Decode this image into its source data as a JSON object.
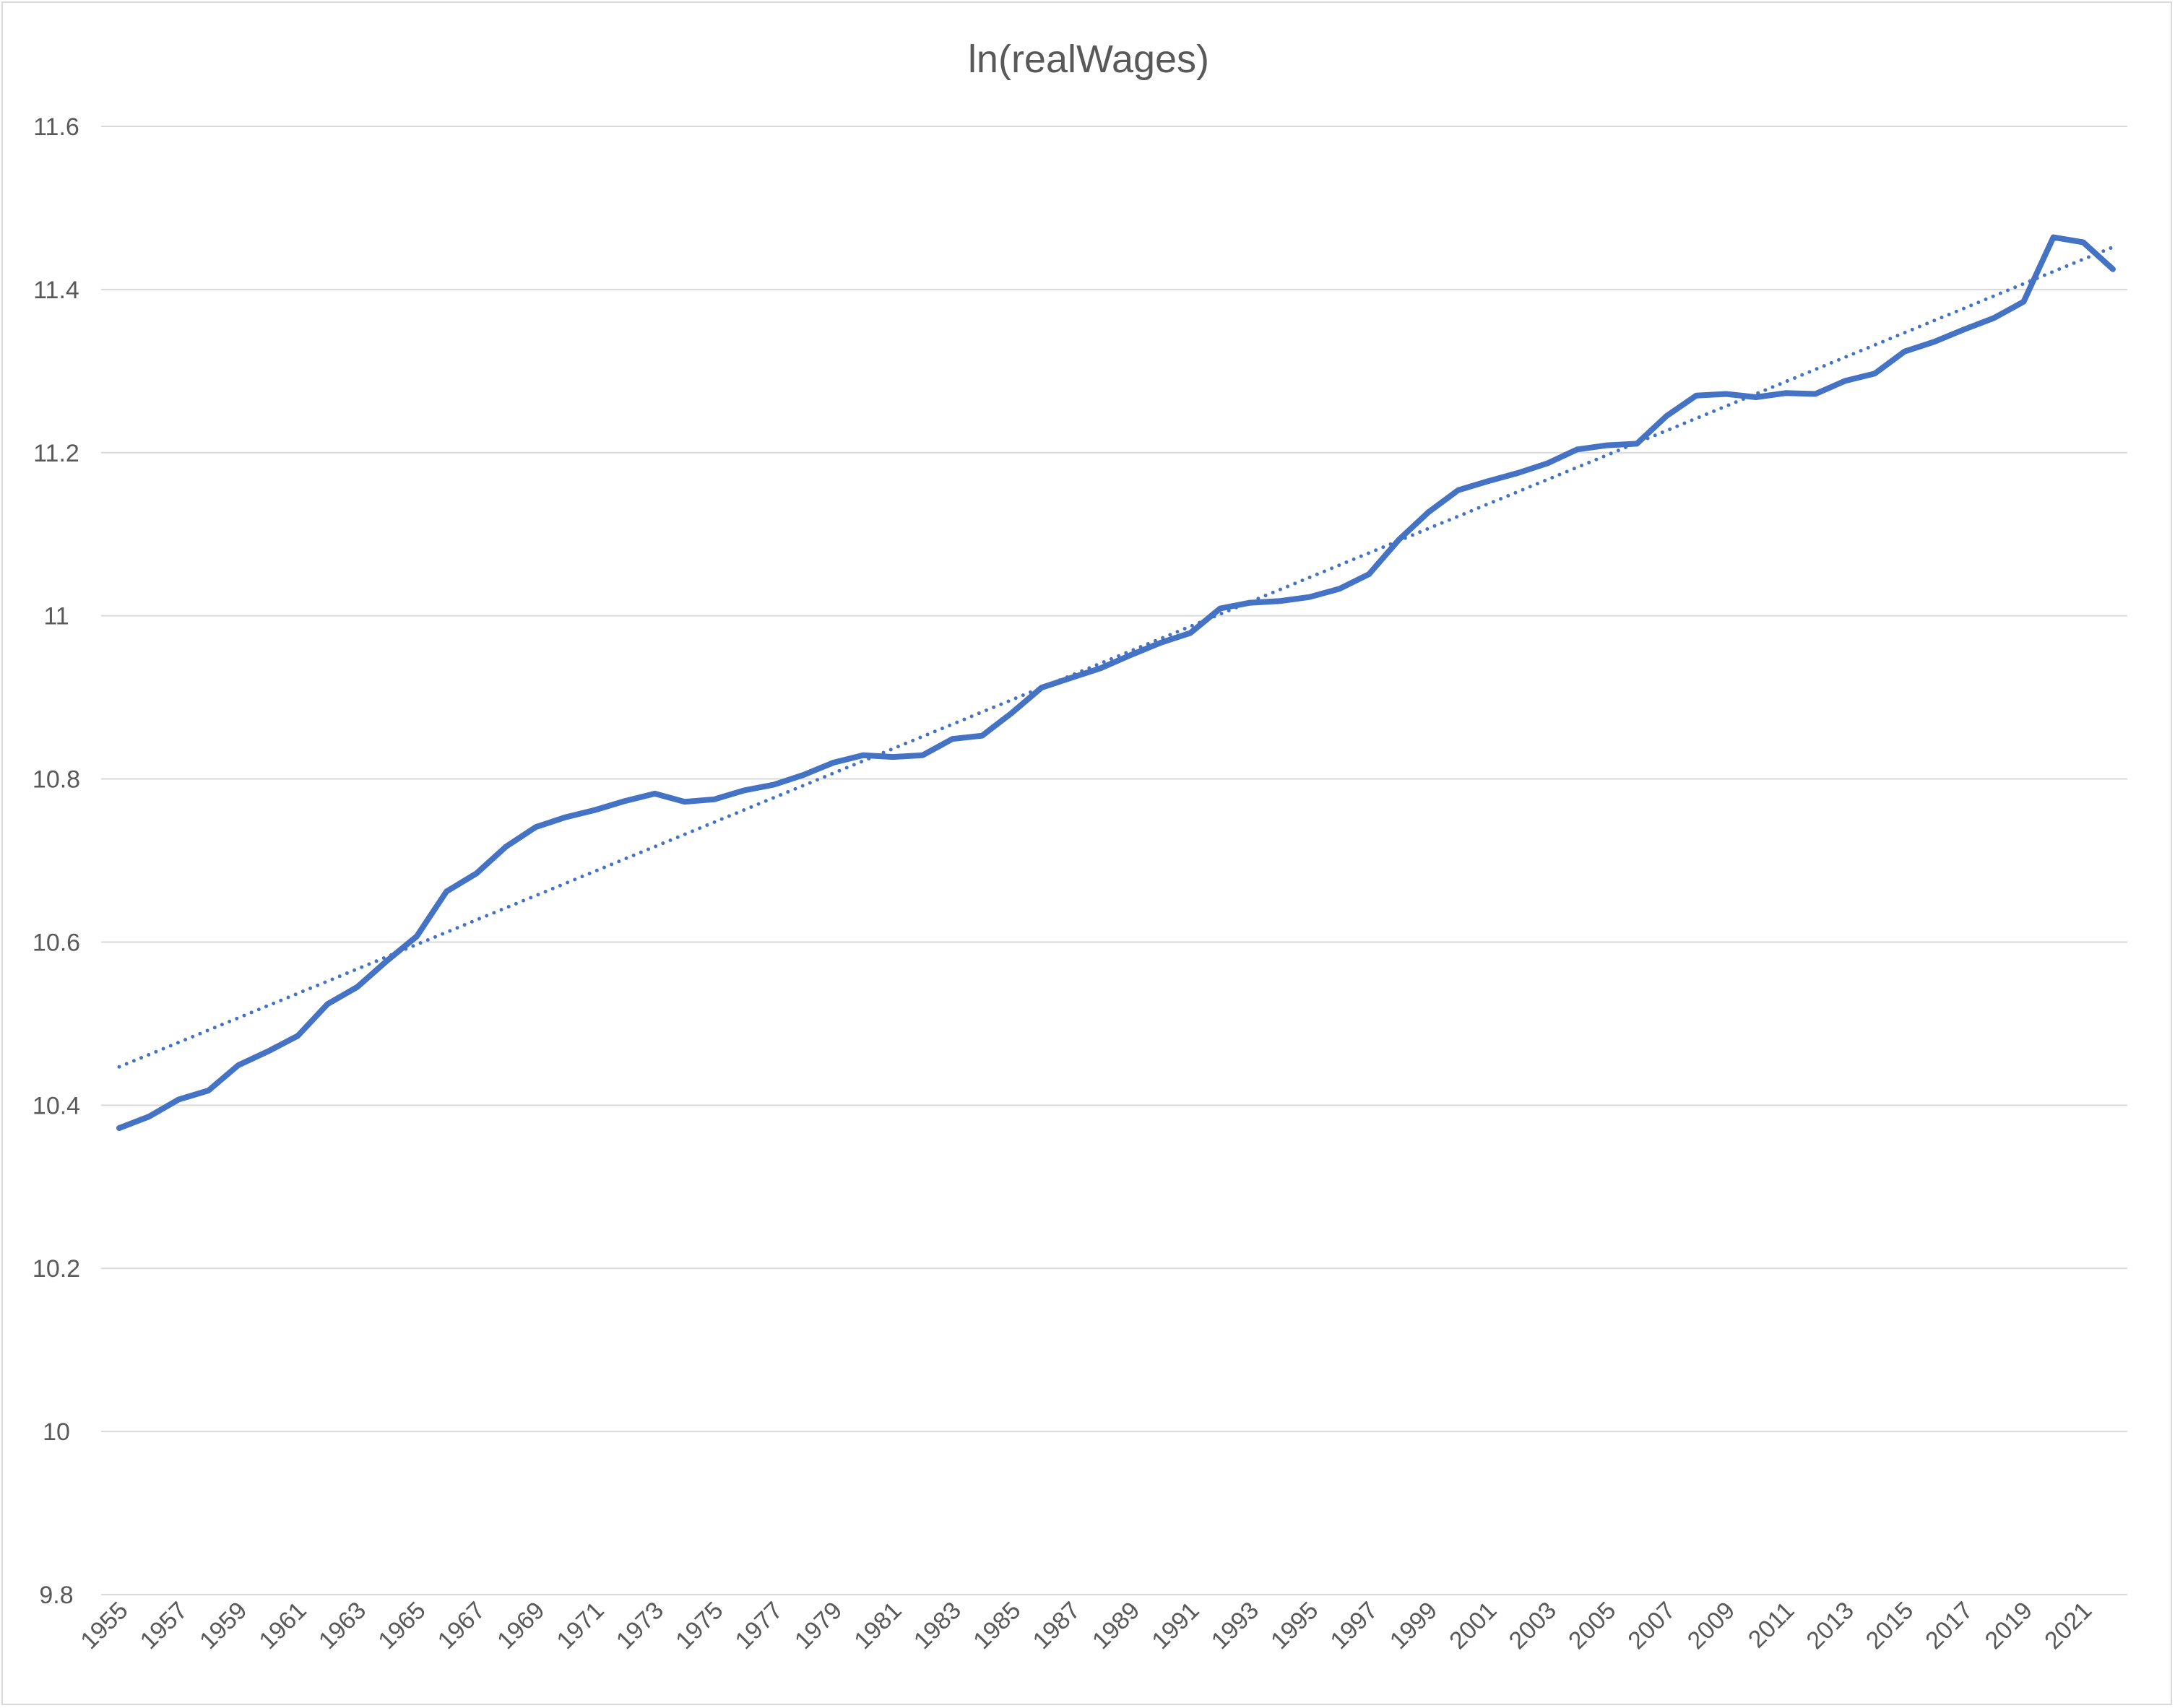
{
  "chart_data": {
    "type": "line",
    "title": "ln(realWages)",
    "xlabel": "",
    "ylabel": "",
    "x": [
      1955,
      1956,
      1957,
      1958,
      1959,
      1960,
      1961,
      1962,
      1963,
      1964,
      1965,
      1966,
      1967,
      1968,
      1969,
      1970,
      1971,
      1972,
      1973,
      1974,
      1975,
      1976,
      1977,
      1978,
      1979,
      1980,
      1981,
      1982,
      1983,
      1984,
      1985,
      1986,
      1987,
      1988,
      1989,
      1990,
      1991,
      1992,
      1993,
      1994,
      1995,
      1996,
      1997,
      1998,
      1999,
      2000,
      2001,
      2002,
      2003,
      2004,
      2005,
      2006,
      2007,
      2008,
      2009,
      2010,
      2011,
      2012,
      2013,
      2014,
      2015,
      2016,
      2017,
      2018,
      2019,
      2020,
      2021,
      2022
    ],
    "x_tick_labels": [
      "1955",
      "1957",
      "1959",
      "1961",
      "1963",
      "1965",
      "1967",
      "1969",
      "1971",
      "1973",
      "1975",
      "1977",
      "1979",
      "1981",
      "1983",
      "1985",
      "1987",
      "1989",
      "1991",
      "1993",
      "1995",
      "1997",
      "1999",
      "2001",
      "2003",
      "2005",
      "2007",
      "2009",
      "2011",
      "2013",
      "2015",
      "2017",
      "2019",
      "2021"
    ],
    "y_tick_labels": [
      "9.8",
      "10",
      "10.2",
      "10.4",
      "10.6",
      "10.8",
      "11",
      "11.2",
      "11.4",
      "11.6"
    ],
    "ylim": [
      9.8,
      11.6
    ],
    "grid": true,
    "legend": "none",
    "series": [
      {
        "style": "solid",
        "color": "#4472c4",
        "values": [
          10.372,
          10.386,
          10.407,
          10.418,
          10.449,
          10.466,
          10.485,
          10.524,
          10.545,
          10.577,
          10.607,
          10.662,
          10.684,
          10.717,
          10.741,
          10.753,
          10.762,
          10.773,
          10.782,
          10.772,
          10.775,
          10.786,
          10.793,
          10.805,
          10.82,
          10.829,
          10.827,
          10.829,
          10.849,
          10.853,
          10.881,
          10.912,
          10.924,
          10.936,
          10.952,
          10.967,
          10.979,
          11.009,
          11.016,
          11.018,
          11.023,
          11.033,
          11.051,
          11.093,
          11.127,
          11.154,
          11.165,
          11.175,
          11.187,
          11.204,
          11.209,
          11.211,
          11.245,
          11.27,
          11.272,
          11.268,
          11.273,
          11.272,
          11.288,
          11.297,
          11.324,
          11.336,
          11.351,
          11.365,
          11.385,
          11.464,
          11.458,
          11.425
        ]
      },
      {
        "style": "dotted",
        "color": "#4472c4",
        "trendline": "linear",
        "values": [
          10.447,
          10.462,
          10.477,
          10.492,
          10.507,
          10.522,
          10.537,
          10.552,
          10.567,
          10.582,
          10.597,
          10.612,
          10.627,
          10.642,
          10.657,
          10.672,
          10.687,
          10.702,
          10.717,
          10.732,
          10.747,
          10.762,
          10.777,
          10.792,
          10.807,
          10.822,
          10.837,
          10.852,
          10.867,
          10.882,
          10.897,
          10.912,
          10.927,
          10.942,
          10.957,
          10.972,
          10.987,
          11.002,
          11.017,
          11.032,
          11.047,
          11.062,
          11.077,
          11.092,
          11.107,
          11.122,
          11.137,
          11.152,
          11.167,
          11.182,
          11.197,
          11.212,
          11.227,
          11.242,
          11.257,
          11.272,
          11.287,
          11.302,
          11.317,
          11.332,
          11.347,
          11.362,
          11.377,
          11.392,
          11.407,
          11.422,
          11.437,
          11.452
        ]
      }
    ]
  }
}
